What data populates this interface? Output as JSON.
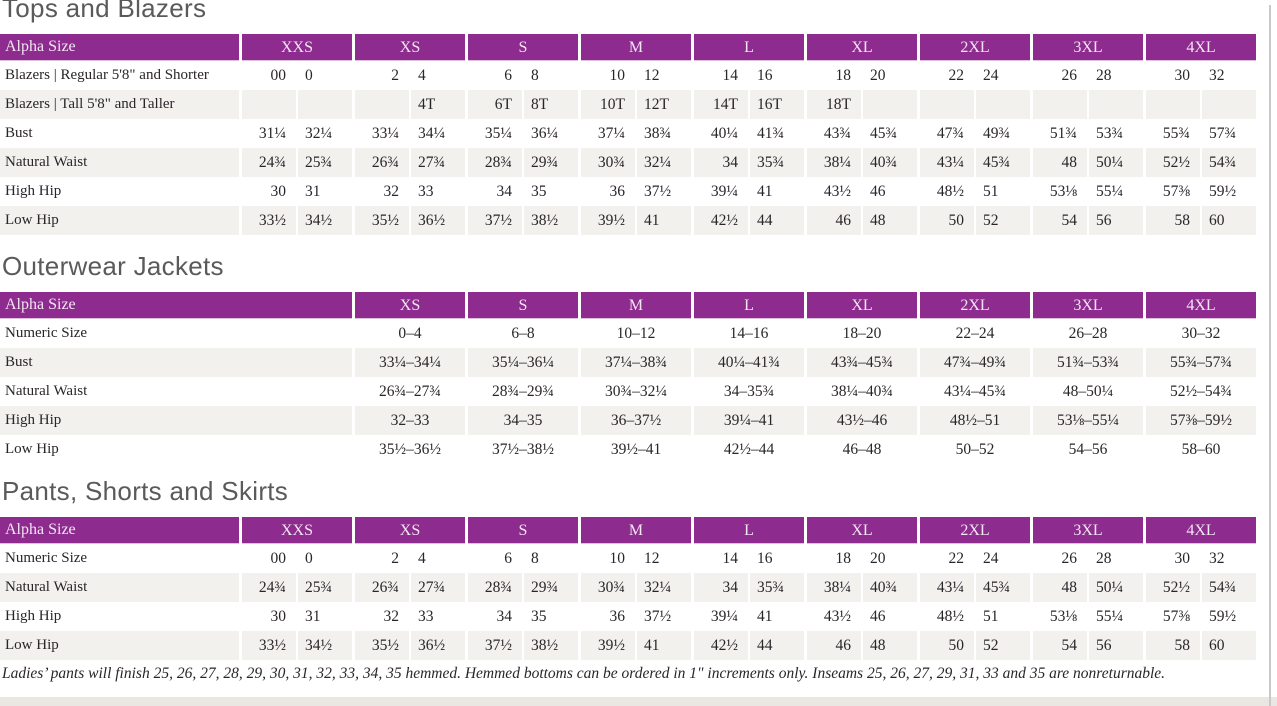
{
  "page": {
    "accent_color": "#8e2b8e",
    "stripe_color": "#f2f1ee",
    "footer_note": "Ladies’ pants will finish 25, 26, 27, 28, 29, 30, 31, 32, 33, 34, 35 hemmed. Hemmed bottoms can be ordered in 1\" increments only. Inseams 25, 26, 27, 29, 31, 33 and 35 are nonreturnable."
  },
  "tables": [
    {
      "title": "Tops and Blazers",
      "header_label": "Alpha Size",
      "paired": true,
      "sizes": [
        "XXS",
        "XS",
        "S",
        "M",
        "L",
        "XL",
        "2XL",
        "3XL",
        "4XL"
      ],
      "rows": [
        {
          "label": "Blazers | Regular 5'8\" and Shorter",
          "cells": [
            [
              "00",
              "0"
            ],
            [
              "2",
              "4"
            ],
            [
              "6",
              "8"
            ],
            [
              "10",
              "12"
            ],
            [
              "14",
              "16"
            ],
            [
              "18",
              "20"
            ],
            [
              "22",
              "24"
            ],
            [
              "26",
              "28"
            ],
            [
              "30",
              "32"
            ]
          ]
        },
        {
          "label": "Blazers | Tall 5'8\" and Taller",
          "cells": [
            [
              "",
              ""
            ],
            [
              "",
              "4T"
            ],
            [
              "6T",
              "8T"
            ],
            [
              "10T",
              "12T"
            ],
            [
              "14T",
              "16T"
            ],
            [
              "18T",
              ""
            ],
            [
              "",
              ""
            ],
            [
              "",
              ""
            ],
            [
              "",
              ""
            ]
          ]
        },
        {
          "label": "Bust",
          "cells": [
            [
              "31¼",
              "32¼"
            ],
            [
              "33¼",
              "34¼"
            ],
            [
              "35¼",
              "36¼"
            ],
            [
              "37¼",
              "38¾"
            ],
            [
              "40¼",
              "41¾"
            ],
            [
              "43¾",
              "45¾"
            ],
            [
              "47¾",
              "49¾"
            ],
            [
              "51¾",
              "53¾"
            ],
            [
              "55¾",
              "57¾"
            ]
          ]
        },
        {
          "label": "Natural Waist",
          "cells": [
            [
              "24¾",
              "25¾"
            ],
            [
              "26¾",
              "27¾"
            ],
            [
              "28¾",
              "29¾"
            ],
            [
              "30¾",
              "32¼"
            ],
            [
              "34",
              "35¾"
            ],
            [
              "38¼",
              "40¾"
            ],
            [
              "43¼",
              "45¾"
            ],
            [
              "48",
              "50¼"
            ],
            [
              "52½",
              "54¾"
            ]
          ]
        },
        {
          "label": "High Hip",
          "cells": [
            [
              "30",
              "31"
            ],
            [
              "32",
              "33"
            ],
            [
              "34",
              "35"
            ],
            [
              "36",
              "37½"
            ],
            [
              "39¼",
              "41"
            ],
            [
              "43½",
              "46"
            ],
            [
              "48½",
              "51"
            ],
            [
              "53⅛",
              "55¼"
            ],
            [
              "57⅜",
              "59½"
            ]
          ]
        },
        {
          "label": "Low Hip",
          "cells": [
            [
              "33½",
              "34½"
            ],
            [
              "35½",
              "36½"
            ],
            [
              "37½",
              "38½"
            ],
            [
              "39½",
              "41"
            ],
            [
              "42½",
              "44"
            ],
            [
              "46",
              "48"
            ],
            [
              "50",
              "52"
            ],
            [
              "54",
              "56"
            ],
            [
              "58",
              "60"
            ]
          ]
        }
      ]
    },
    {
      "title": "Outerwear Jackets",
      "header_label": "Alpha Size",
      "paired": false,
      "sizes": [
        "XS",
        "S",
        "M",
        "L",
        "XL",
        "2XL",
        "3XL",
        "4XL"
      ],
      "rows": [
        {
          "label": "Numeric Size",
          "cells": [
            "0–4",
            "6–8",
            "10–12",
            "14–16",
            "18–20",
            "22–24",
            "26–28",
            "30–32"
          ]
        },
        {
          "label": "Bust",
          "cells": [
            "33¼–34¼",
            "35¼–36¼",
            "37¼–38¾",
            "40¼–41¾",
            "43¾–45¾",
            "47¾–49¾",
            "51¾–53¾",
            "55¾–57¾"
          ]
        },
        {
          "label": "Natural Waist",
          "cells": [
            "26¾–27¾",
            "28¾–29¾",
            "30¾–32¼",
            "34–35¾",
            "38¼–40¾",
            "43¼–45¾",
            "48–50¼",
            "52½–54¾"
          ]
        },
        {
          "label": "High Hip",
          "cells": [
            "32–33",
            "34–35",
            "36–37½",
            "39¼–41",
            "43½–46",
            "48½–51",
            "53⅛–55¼",
            "57⅜–59½"
          ]
        },
        {
          "label": "Low Hip",
          "cells": [
            "35½–36½",
            "37½–38½",
            "39½–41",
            "42½–44",
            "46–48",
            "50–52",
            "54–56",
            "58–60"
          ]
        }
      ]
    },
    {
      "title": "Pants, Shorts and Skirts",
      "header_label": "Alpha Size",
      "paired": true,
      "sizes": [
        "XXS",
        "XS",
        "S",
        "M",
        "L",
        "XL",
        "2XL",
        "3XL",
        "4XL"
      ],
      "rows": [
        {
          "label": "Numeric Size",
          "cells": [
            [
              "00",
              "0"
            ],
            [
              "2",
              "4"
            ],
            [
              "6",
              "8"
            ],
            [
              "10",
              "12"
            ],
            [
              "14",
              "16"
            ],
            [
              "18",
              "20"
            ],
            [
              "22",
              "24"
            ],
            [
              "26",
              "28"
            ],
            [
              "30",
              "32"
            ]
          ]
        },
        {
          "label": "Natural Waist",
          "cells": [
            [
              "24¾",
              "25¾"
            ],
            [
              "26¾",
              "27¾"
            ],
            [
              "28¾",
              "29¾"
            ],
            [
              "30¾",
              "32¼"
            ],
            [
              "34",
              "35¾"
            ],
            [
              "38¼",
              "40¾"
            ],
            [
              "43¼",
              "45¾"
            ],
            [
              "48",
              "50¼"
            ],
            [
              "52½",
              "54¾"
            ]
          ]
        },
        {
          "label": "High Hip",
          "cells": [
            [
              "30",
              "31"
            ],
            [
              "32",
              "33"
            ],
            [
              "34",
              "35"
            ],
            [
              "36",
              "37½"
            ],
            [
              "39¼",
              "41"
            ],
            [
              "43½",
              "46"
            ],
            [
              "48½",
              "51"
            ],
            [
              "53⅛",
              "55¼"
            ],
            [
              "57⅜",
              "59½"
            ]
          ]
        },
        {
          "label": "Low Hip",
          "cells": [
            [
              "33½",
              "34½"
            ],
            [
              "35½",
              "36½"
            ],
            [
              "37½",
              "38½"
            ],
            [
              "39½",
              "41"
            ],
            [
              "42½",
              "44"
            ],
            [
              "46",
              "48"
            ],
            [
              "50",
              "52"
            ],
            [
              "54",
              "56"
            ],
            [
              "58",
              "60"
            ]
          ]
        }
      ]
    }
  ]
}
